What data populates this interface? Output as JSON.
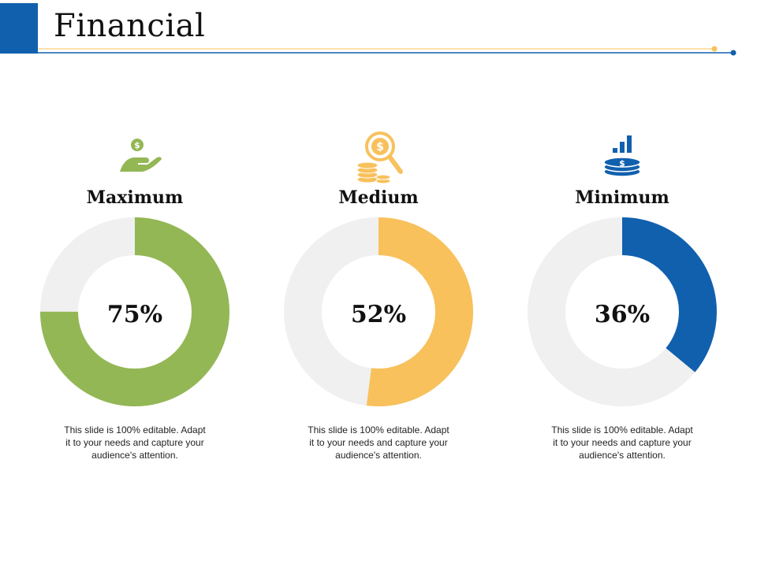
{
  "title": "Financial",
  "colors": {
    "accent": "#1160ae",
    "gold": "#f8c15c",
    "green": "#93b755",
    "track": "#f0f0f0"
  },
  "chart_data": [
    {
      "type": "pie",
      "label": "Maximum",
      "value": 75,
      "value_text": "75%",
      "color": "#93b755",
      "icon": "hand-coin-icon",
      "description": "This slide is 100% editable. Adapt it to your needs and capture your audience's attention."
    },
    {
      "type": "pie",
      "label": "Medium",
      "value": 52,
      "value_text": "52%",
      "color": "#f8c15c",
      "icon": "magnifier-coins-icon",
      "description": "This slide is 100% editable. Adapt it to your needs and capture your audience's attention."
    },
    {
      "type": "pie",
      "label": "Minimum",
      "value": 36,
      "value_text": "36%",
      "color": "#1160ae",
      "icon": "bar-chart-coins-icon",
      "description": "This slide is 100% editable. Adapt it to your needs and capture your audience's attention."
    }
  ]
}
